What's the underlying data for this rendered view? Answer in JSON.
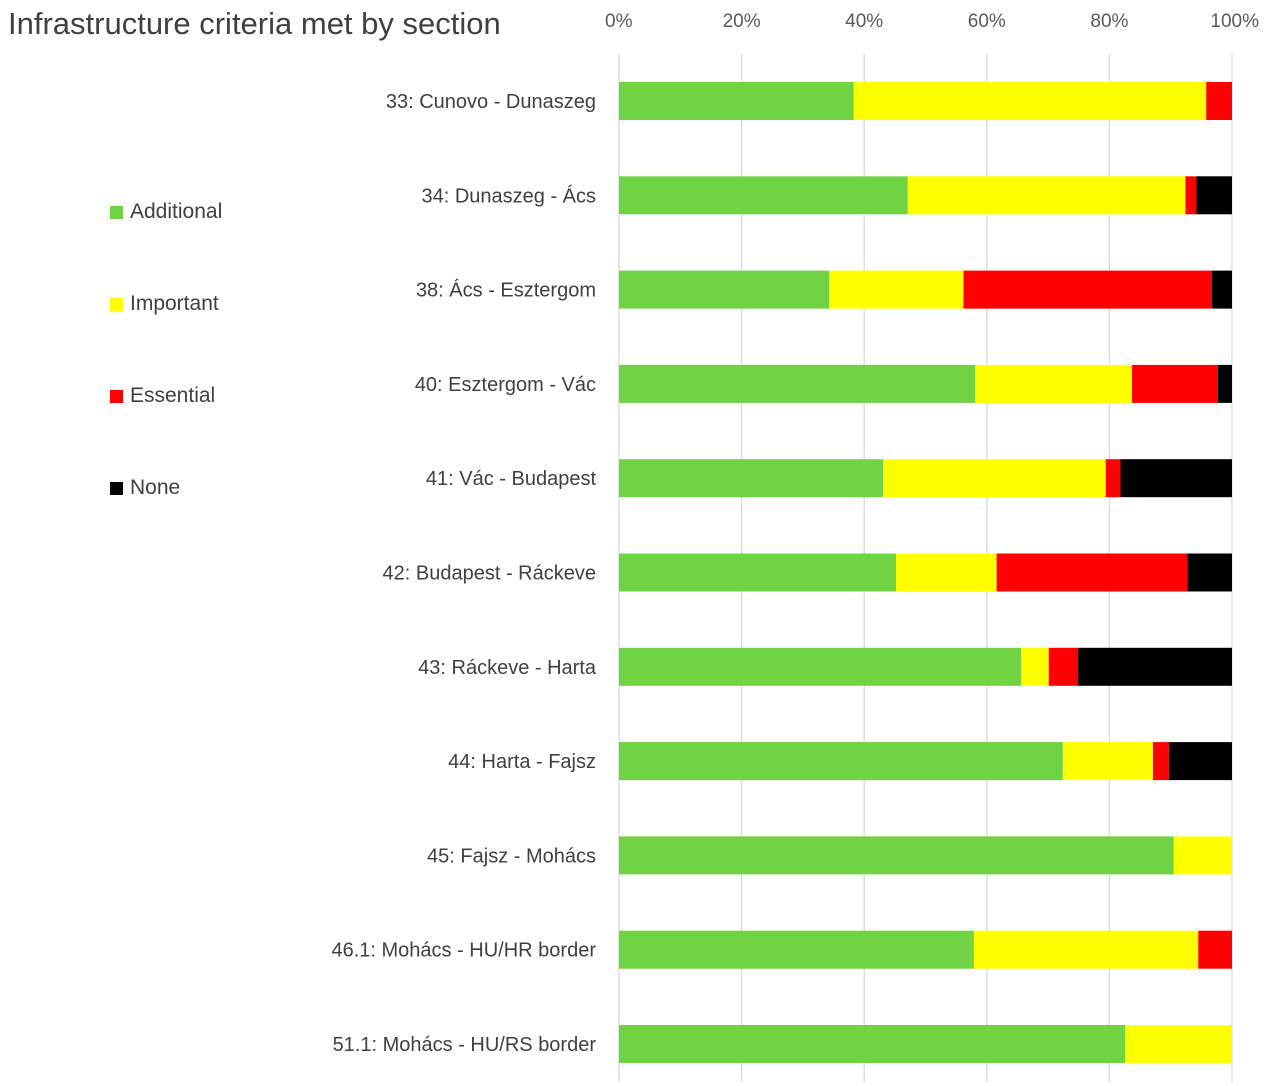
{
  "chart_data": {
    "type": "bar",
    "orientation": "horizontal",
    "stacked": "percent",
    "title": "Infrastructure criteria met by section",
    "xlim": [
      0,
      100
    ],
    "x_ticks": [
      "0%",
      "20%",
      "40%",
      "60%",
      "80%",
      "100%"
    ],
    "grid": true,
    "legend_position": "left",
    "categories": [
      "33: Cunovo - Dunaszeg",
      "34: Dunaszeg - Ács",
      "38: Ács - Esztergom",
      "40: Esztergom - Vác",
      "41: Vác - Budapest",
      "42: Budapest - Ráckeve",
      "43: Ráckeve - Harta",
      "44: Harta - Fajsz",
      "45: Fajsz - Mohács",
      "46.1: Mohács - HU/HR border",
      "51.1: Mohács - HU/RS border"
    ],
    "series": [
      {
        "name": "Additional",
        "color": "#6fd344",
        "values": [
          38.3,
          47.1,
          34.3,
          58.1,
          43.1,
          45.2,
          65.6,
          72.4,
          90.5,
          57.9,
          82.6
        ]
      },
      {
        "name": "Important",
        "color": "#ffff00",
        "values": [
          57.5,
          45.3,
          21.9,
          25.6,
          36.3,
          16.4,
          4.5,
          14.7,
          9.5,
          36.6,
          17.4
        ]
      },
      {
        "name": "Essential",
        "color": "#ff0000",
        "values": [
          4.2,
          1.8,
          40.5,
          14.0,
          2.4,
          31.1,
          4.8,
          2.6,
          0,
          5.5,
          0
        ]
      },
      {
        "name": "None",
        "color": "#000000",
        "values": [
          0,
          5.8,
          3.3,
          2.3,
          18.2,
          7.3,
          25.1,
          10.3,
          0,
          0,
          0
        ]
      }
    ]
  }
}
